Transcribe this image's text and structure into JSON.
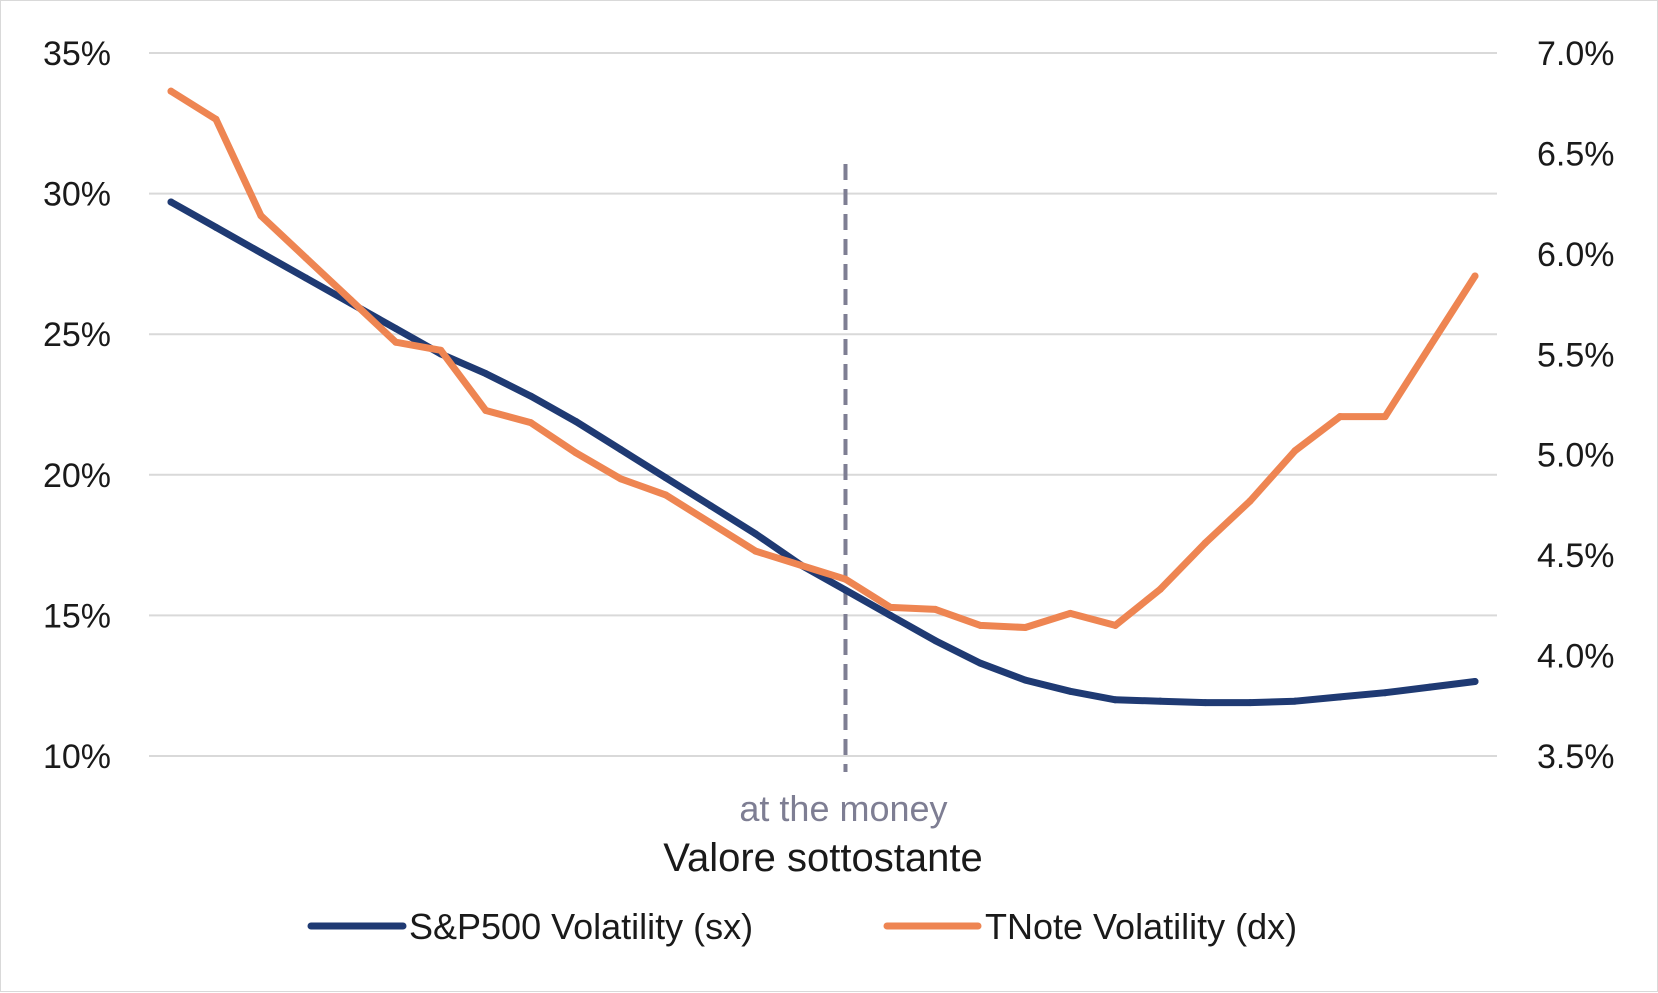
{
  "chart_data": {
    "type": "line",
    "title": "",
    "xlabel": "Valore sottostante",
    "ylabel_left": "",
    "ylabel_right": "",
    "x": [
      1,
      2,
      3,
      4,
      5,
      6,
      7,
      8,
      9,
      10,
      11,
      12,
      13,
      14,
      15,
      16,
      17,
      18,
      19,
      20,
      21,
      22,
      23,
      24,
      25,
      26,
      27,
      28,
      29,
      30
    ],
    "ylim_left": [
      10,
      35
    ],
    "ylim_right": [
      3.5,
      7.0
    ],
    "yticks_left": [
      10,
      15,
      20,
      25,
      30,
      35
    ],
    "yticks_left_labels": [
      "10%",
      "15%",
      "20%",
      "25%",
      "30%",
      "35%"
    ],
    "yticks_right": [
      3.5,
      4.0,
      4.5,
      5.0,
      5.5,
      6.0,
      6.5,
      7.0
    ],
    "yticks_right_labels": [
      "3.5%",
      "4.0%",
      "4.5%",
      "5.0%",
      "5.5%",
      "6.0%",
      "6.5%",
      "7.0%"
    ],
    "grid": true,
    "legend_position": "bottom",
    "series": [
      {
        "name": "S&P500 Volatility (sx)",
        "axis": "left",
        "color": "#1f3a73",
        "values": [
          29.7,
          28.8,
          27.9,
          27.0,
          26.1,
          25.2,
          24.3,
          23.6,
          22.8,
          21.9,
          20.9,
          19.9,
          18.9,
          17.9,
          16.8,
          15.9,
          15.0,
          14.1,
          13.3,
          12.7,
          12.3,
          12.0,
          11.95,
          11.9,
          11.9,
          11.95,
          12.1,
          12.25,
          12.45,
          12.65
        ]
      },
      {
        "name": "TNote Volatility (dx)",
        "axis": "right",
        "color": "#ee8552",
        "values": [
          6.81,
          6.67,
          6.19,
          5.98,
          5.77,
          5.56,
          5.52,
          5.22,
          5.16,
          5.01,
          4.88,
          4.8,
          4.66,
          4.52,
          4.45,
          4.38,
          4.24,
          4.23,
          4.15,
          4.14,
          4.21,
          4.15,
          4.33,
          4.56,
          4.77,
          5.02,
          5.19,
          5.19,
          5.54,
          5.89
        ]
      }
    ],
    "annotations": [
      {
        "type": "vline",
        "x": 16.0,
        "label": "at the money",
        "color": "#7e7e93"
      }
    ]
  }
}
